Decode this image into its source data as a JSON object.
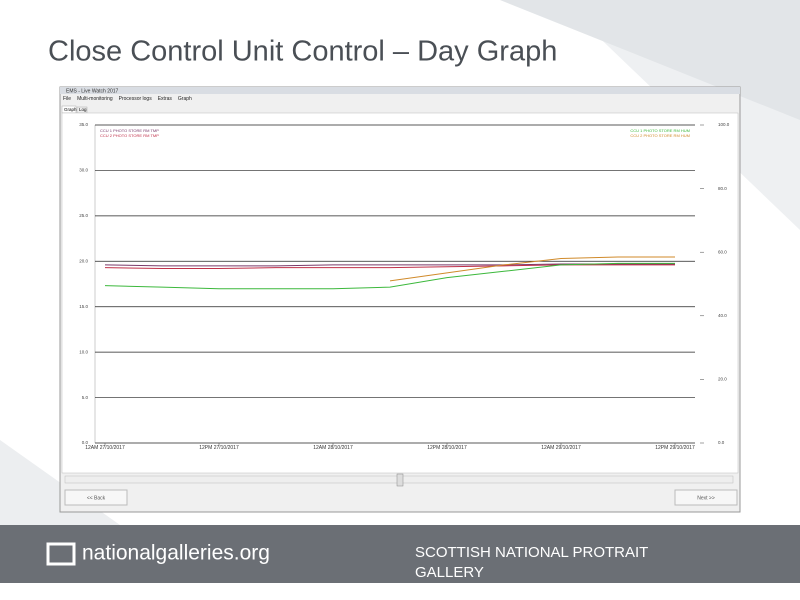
{
  "slide_title": "Close Control Unit Control – Day Graph",
  "window": {
    "title": "EMS - Live Watch 2017",
    "menu": [
      "File",
      "Multi-monitoring",
      "Processor logs",
      "Extras",
      "Graph"
    ],
    "tabs": [
      "Graph",
      "Log"
    ],
    "back_button": "<< Back",
    "next_button": "Next >>"
  },
  "footer": {
    "website": "nationalgalleries.org",
    "venue": "SCOTTISH NATIONAL PROTRAIT GALLERY"
  },
  "chart_data": {
    "type": "line",
    "categories": [
      "12AM 27/10/2017",
      null,
      "12PM 27/10/2017",
      null,
      "12AM 28/10/2017",
      null,
      "12PM 28/10/2017",
      null,
      "12AM 29/10/2017",
      null,
      "12PM 29/10/2017"
    ],
    "series": [
      {
        "name": "CCU 1 PHOTO STORE RM TMP",
        "color": "#7a3a6a",
        "values": [
          19.6,
          19.5,
          19.5,
          19.5,
          19.6,
          19.6,
          19.6,
          19.6,
          19.7,
          19.7,
          19.7
        ]
      },
      {
        "name": "CCU 2 PHOTO STORE RM TMP",
        "color": "#c0304a",
        "values": [
          19.3,
          19.2,
          19.2,
          19.3,
          19.3,
          19.3,
          19.4,
          19.5,
          19.6,
          19.6,
          19.6
        ]
      },
      {
        "name": "CCU 1 PHOTO STORE RM HUM",
        "color": "#3cb83c",
        "axis": "y2",
        "values": [
          49.5,
          49,
          48.5,
          48.5,
          48.5,
          49,
          52,
          54,
          56,
          56.5,
          56.5
        ]
      },
      {
        "name": "CCU 2 PHOTO STORE RM HUM",
        "color": "#d08a2a",
        "axis": "y2",
        "values": [
          null,
          null,
          null,
          null,
          null,
          51,
          53.5,
          56,
          58,
          58.5,
          58.5
        ]
      }
    ],
    "ylim": [
      0,
      35
    ],
    "yticks": [
      {
        "value": 0,
        "label": "0.0"
      },
      {
        "value": 5,
        "label": "5.0"
      },
      {
        "value": 10,
        "label": "10.0"
      },
      {
        "value": 15,
        "label": "15.0"
      },
      {
        "value": 20,
        "label": "20.0"
      },
      {
        "value": 25,
        "label": "25.0"
      },
      {
        "value": 30,
        "label": "30.0"
      },
      {
        "value": 35,
        "label": "35.0"
      }
    ],
    "y2lim": [
      0,
      100
    ],
    "y2ticks": [
      {
        "value": 0,
        "label": "0.0"
      },
      {
        "value": 20,
        "label": "20.0"
      },
      {
        "value": 40,
        "label": "40.0"
      },
      {
        "value": 60,
        "label": "60.0"
      },
      {
        "value": 80,
        "label": "80.0"
      },
      {
        "value": 100,
        "label": "100.0"
      }
    ],
    "grid": true
  }
}
